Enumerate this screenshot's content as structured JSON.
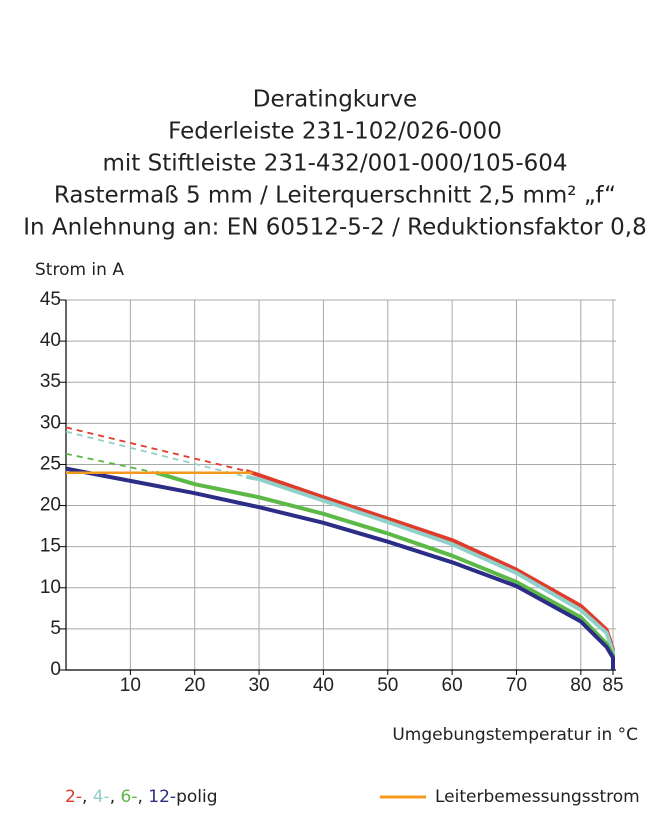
{
  "chart_data": {
    "type": "line",
    "title": [
      "Deratingkurve",
      "Federleiste 231-102/026-000",
      "mit Stiftleiste 231-432/001-000/105-604",
      "Rastermaß 5 mm / Leiterquerschnitt 2,5 mm² „f“",
      "In Anlehnung an: EN 60512-5-2 / Reduktionsfaktor 0,8"
    ],
    "y_label": "Strom in A",
    "x_label": "Umgebungstemperatur in °C",
    "xlim": [
      0,
      85
    ],
    "xticks": [
      10,
      20,
      30,
      40,
      50,
      60,
      70,
      80,
      85
    ],
    "ylim": [
      0,
      45
    ],
    "yticks": [
      0,
      5,
      10,
      15,
      20,
      25,
      30,
      35,
      40,
      45
    ],
    "grid": true,
    "legend_separator": ", ",
    "legend_suffix": "polig",
    "series": [
      {
        "color": "#e03a2a",
        "dashed": true,
        "x": [
          0,
          28
        ],
        "values": [
          29.5,
          24.2
        ]
      },
      {
        "color": "#8fd0c8",
        "dashed": true,
        "x": [
          0,
          28
        ],
        "values": [
          29,
          23.5
        ]
      },
      {
        "color": "#5cb947",
        "dashed": true,
        "x": [
          0,
          14
        ],
        "values": [
          26.3,
          24
        ]
      },
      {
        "name": "2-",
        "color": "#e03a2a",
        "x": [
          28,
          30,
          40,
          50,
          60,
          70,
          80,
          84,
          85,
          85
        ],
        "values": [
          24.2,
          23.7,
          21.0,
          18.4,
          15.8,
          12.2,
          7.8,
          4.9,
          2.5,
          0
        ]
      },
      {
        "name": "4-",
        "color": "#8fd0c8",
        "x": [
          28,
          30,
          40,
          50,
          60,
          70,
          80,
          84,
          85,
          85
        ],
        "values": [
          23.5,
          23.2,
          20.6,
          18.0,
          15.3,
          11.8,
          7.3,
          4.5,
          2.2,
          0
        ]
      },
      {
        "name": "6-",
        "color": "#5cb947",
        "x": [
          14,
          20,
          30,
          40,
          50,
          60,
          70,
          80,
          84,
          85,
          85
        ],
        "values": [
          24,
          22.6,
          21,
          19,
          16.6,
          13.9,
          10.7,
          6.4,
          3.2,
          1.8,
          0
        ]
      },
      {
        "name": "12-",
        "color": "#2c2d86",
        "x": [
          0,
          10,
          20,
          30,
          40,
          50,
          60,
          70,
          80,
          84,
          85,
          85
        ],
        "values": [
          24.5,
          23,
          21.5,
          19.8,
          17.9,
          15.6,
          13.1,
          10.2,
          5.9,
          2.8,
          1.5,
          0
        ]
      },
      {
        "name": "Leiterbemessungsstrom",
        "color": "#f39a1e",
        "legend_style": "line",
        "x": [
          0,
          29
        ],
        "values": [
          24,
          24
        ]
      }
    ]
  }
}
